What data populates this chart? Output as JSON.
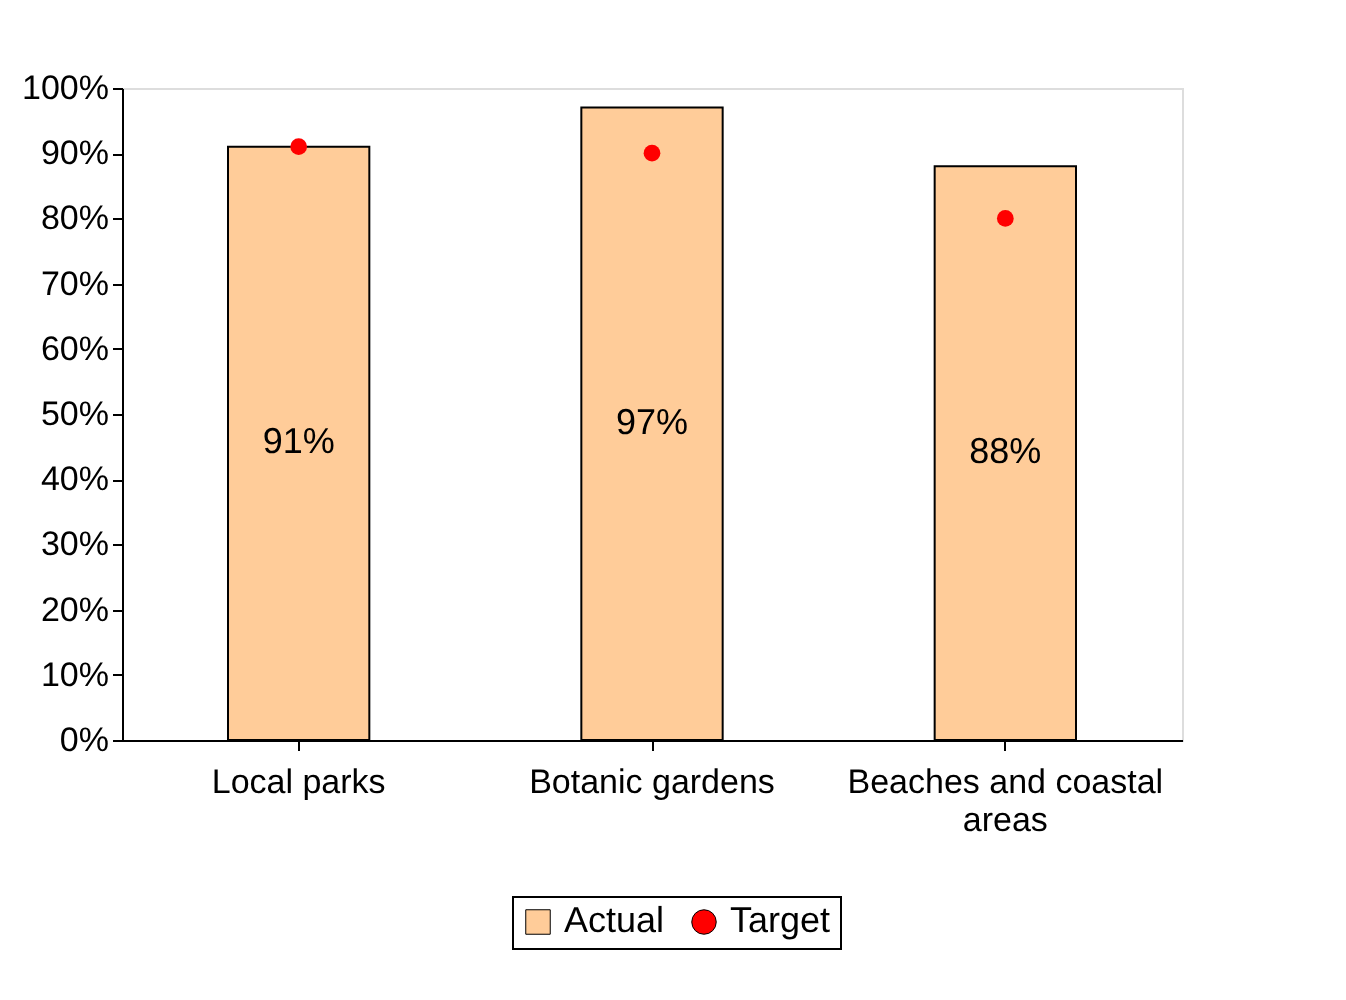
{
  "chart_data": {
    "type": "bar",
    "categories": [
      "Local parks",
      "Botanic gardens",
      "Beaches and coastal areas"
    ],
    "series": [
      {
        "name": "Actual",
        "color": "#ffcc99",
        "values": [
          91,
          97,
          88
        ],
        "value_labels": [
          "91%",
          "97%",
          "88%"
        ]
      },
      {
        "name": "Target",
        "type": "scatter",
        "color": "#ff0000",
        "values": [
          91,
          90,
          80
        ],
        "marker": "circle"
      }
    ],
    "ylim": [
      0,
      100
    ],
    "yticks": [
      {
        "value": 0,
        "label": "0%"
      },
      {
        "value": 10,
        "label": "10%"
      },
      {
        "value": 20,
        "label": "20%"
      },
      {
        "value": 30,
        "label": "30%"
      },
      {
        "value": 40,
        "label": "40%"
      },
      {
        "value": 50,
        "label": "50%"
      },
      {
        "value": 60,
        "label": "60%"
      },
      {
        "value": 70,
        "label": "70%"
      },
      {
        "value": 80,
        "label": "80%"
      },
      {
        "value": 90,
        "label": "90%"
      },
      {
        "value": 100,
        "label": "100%"
      }
    ],
    "grid": false,
    "legend": "bottom"
  }
}
